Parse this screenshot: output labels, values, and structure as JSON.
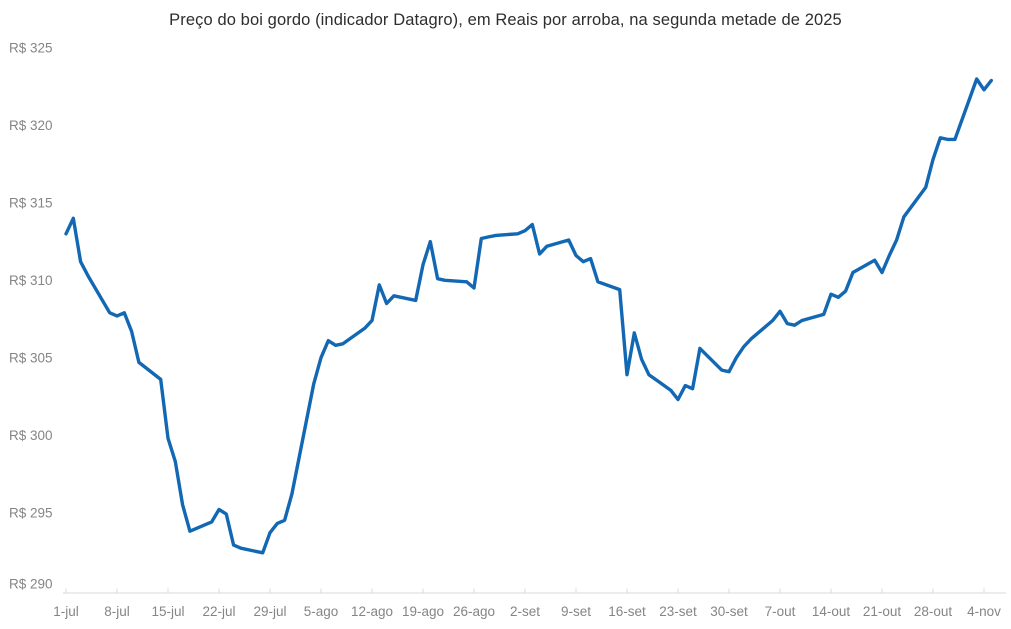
{
  "chart_data": {
    "type": "line",
    "title": "Preço do boi gordo (indicador Datagro), em Reais por arroba, na segunda metade de 2025",
    "grid": false,
    "legend": false,
    "line_color": "#1268b3",
    "axis_color": "#d9d9d9",
    "label_color": "#858585",
    "title_color": "#2e2e2e",
    "y_axis": {
      "min": 290,
      "max": 325,
      "tick_values": [
        325,
        320,
        315,
        310,
        305,
        300,
        295,
        290
      ],
      "tick_labels": [
        "R$ 325",
        "R$ 320",
        "R$ 315",
        "R$ 310",
        "R$ 305",
        "R$ 300",
        "R$ 295",
        "R$ 290"
      ]
    },
    "x_axis": {
      "tick_labels": [
        "1-jul",
        "8-jul",
        "15-jul",
        "22-jul",
        "29-jul",
        "5-ago",
        "12-ago",
        "19-ago",
        "26-ago",
        "2-set",
        "9-set",
        "16-set",
        "23-set",
        "30-set",
        "7-out",
        "14-out",
        "21-out",
        "28-out",
        "4-nov"
      ],
      "tick_dates": [
        "2025-07-01",
        "2025-07-08",
        "2025-07-15",
        "2025-07-22",
        "2025-07-29",
        "2025-08-05",
        "2025-08-12",
        "2025-08-19",
        "2025-08-26",
        "2025-09-02",
        "2025-09-09",
        "2025-09-16",
        "2025-09-23",
        "2025-09-30",
        "2025-10-07",
        "2025-10-14",
        "2025-10-21",
        "2025-10-28",
        "2025-11-04"
      ]
    },
    "series": [
      {
        "name": "Preço do boi gordo (indicador Datagro)",
        "points": [
          {
            "date": "2025-07-01",
            "value": 313.0
          },
          {
            "date": "2025-07-02",
            "value": 314.0
          },
          {
            "date": "2025-07-03",
            "value": 311.2
          },
          {
            "date": "2025-07-04",
            "value": 310.3
          },
          {
            "date": "2025-07-07",
            "value": 307.9
          },
          {
            "date": "2025-07-08",
            "value": 307.7
          },
          {
            "date": "2025-07-09",
            "value": 307.9
          },
          {
            "date": "2025-07-10",
            "value": 306.7
          },
          {
            "date": "2025-07-11",
            "value": 304.7
          },
          {
            "date": "2025-07-14",
            "value": 303.6
          },
          {
            "date": "2025-07-15",
            "value": 299.8
          },
          {
            "date": "2025-07-16",
            "value": 298.3
          },
          {
            "date": "2025-07-17",
            "value": 295.5
          },
          {
            "date": "2025-07-18",
            "value": 293.8
          },
          {
            "date": "2025-07-21",
            "value": 294.4
          },
          {
            "date": "2025-07-22",
            "value": 295.2
          },
          {
            "date": "2025-07-23",
            "value": 294.9
          },
          {
            "date": "2025-07-24",
            "value": 292.9
          },
          {
            "date": "2025-07-25",
            "value": 292.7
          },
          {
            "date": "2025-07-28",
            "value": 292.4
          },
          {
            "date": "2025-07-29",
            "value": 293.7
          },
          {
            "date": "2025-07-30",
            "value": 294.3
          },
          {
            "date": "2025-07-31",
            "value": 294.5
          },
          {
            "date": "2025-08-01",
            "value": 296.2
          },
          {
            "date": "2025-08-04",
            "value": 303.3
          },
          {
            "date": "2025-08-05",
            "value": 305.0
          },
          {
            "date": "2025-08-06",
            "value": 306.1
          },
          {
            "date": "2025-08-07",
            "value": 305.8
          },
          {
            "date": "2025-08-08",
            "value": 305.9
          },
          {
            "date": "2025-08-11",
            "value": 306.9
          },
          {
            "date": "2025-08-12",
            "value": 307.4
          },
          {
            "date": "2025-08-13",
            "value": 309.7
          },
          {
            "date": "2025-08-14",
            "value": 308.5
          },
          {
            "date": "2025-08-15",
            "value": 309.0
          },
          {
            "date": "2025-08-18",
            "value": 308.7
          },
          {
            "date": "2025-08-19",
            "value": 311.0
          },
          {
            "date": "2025-08-20",
            "value": 312.5
          },
          {
            "date": "2025-08-21",
            "value": 310.1
          },
          {
            "date": "2025-08-22",
            "value": 310.0
          },
          {
            "date": "2025-08-25",
            "value": 309.9
          },
          {
            "date": "2025-08-26",
            "value": 309.5
          },
          {
            "date": "2025-08-27",
            "value": 312.7
          },
          {
            "date": "2025-08-28",
            "value": 312.8
          },
          {
            "date": "2025-08-29",
            "value": 312.9
          },
          {
            "date": "2025-09-01",
            "value": 313.0
          },
          {
            "date": "2025-09-02",
            "value": 313.2
          },
          {
            "date": "2025-09-03",
            "value": 313.6
          },
          {
            "date": "2025-09-04",
            "value": 311.7
          },
          {
            "date": "2025-09-05",
            "value": 312.2
          },
          {
            "date": "2025-09-08",
            "value": 312.6
          },
          {
            "date": "2025-09-09",
            "value": 311.6
          },
          {
            "date": "2025-09-10",
            "value": 311.2
          },
          {
            "date": "2025-09-11",
            "value": 311.4
          },
          {
            "date": "2025-09-12",
            "value": 309.9
          },
          {
            "date": "2025-09-15",
            "value": 309.4
          },
          {
            "date": "2025-09-16",
            "value": 303.9
          },
          {
            "date": "2025-09-17",
            "value": 306.6
          },
          {
            "date": "2025-09-18",
            "value": 304.9
          },
          {
            "date": "2025-09-19",
            "value": 303.9
          },
          {
            "date": "2025-09-22",
            "value": 302.9
          },
          {
            "date": "2025-09-23",
            "value": 302.3
          },
          {
            "date": "2025-09-24",
            "value": 303.2
          },
          {
            "date": "2025-09-25",
            "value": 303.0
          },
          {
            "date": "2025-09-26",
            "value": 305.6
          },
          {
            "date": "2025-09-29",
            "value": 304.2
          },
          {
            "date": "2025-09-30",
            "value": 304.1
          },
          {
            "date": "2025-10-01",
            "value": 305.0
          },
          {
            "date": "2025-10-02",
            "value": 305.7
          },
          {
            "date": "2025-10-03",
            "value": 306.2
          },
          {
            "date": "2025-10-06",
            "value": 307.4
          },
          {
            "date": "2025-10-07",
            "value": 308.0
          },
          {
            "date": "2025-10-08",
            "value": 307.2
          },
          {
            "date": "2025-10-09",
            "value": 307.1
          },
          {
            "date": "2025-10-10",
            "value": 307.4
          },
          {
            "date": "2025-10-13",
            "value": 307.8
          },
          {
            "date": "2025-10-14",
            "value": 309.1
          },
          {
            "date": "2025-10-15",
            "value": 308.9
          },
          {
            "date": "2025-10-16",
            "value": 309.3
          },
          {
            "date": "2025-10-17",
            "value": 310.5
          },
          {
            "date": "2025-10-20",
            "value": 311.3
          },
          {
            "date": "2025-10-21",
            "value": 310.5
          },
          {
            "date": "2025-10-22",
            "value": 311.6
          },
          {
            "date": "2025-10-23",
            "value": 312.6
          },
          {
            "date": "2025-10-24",
            "value": 314.1
          },
          {
            "date": "2025-10-27",
            "value": 316.0
          },
          {
            "date": "2025-10-28",
            "value": 317.8
          },
          {
            "date": "2025-10-29",
            "value": 319.2
          },
          {
            "date": "2025-10-30",
            "value": 319.1
          },
          {
            "date": "2025-10-31",
            "value": 319.1
          },
          {
            "date": "2025-11-03",
            "value": 323.0
          },
          {
            "date": "2025-11-04",
            "value": 322.3
          },
          {
            "date": "2025-11-05",
            "value": 322.9
          }
        ]
      }
    ]
  }
}
